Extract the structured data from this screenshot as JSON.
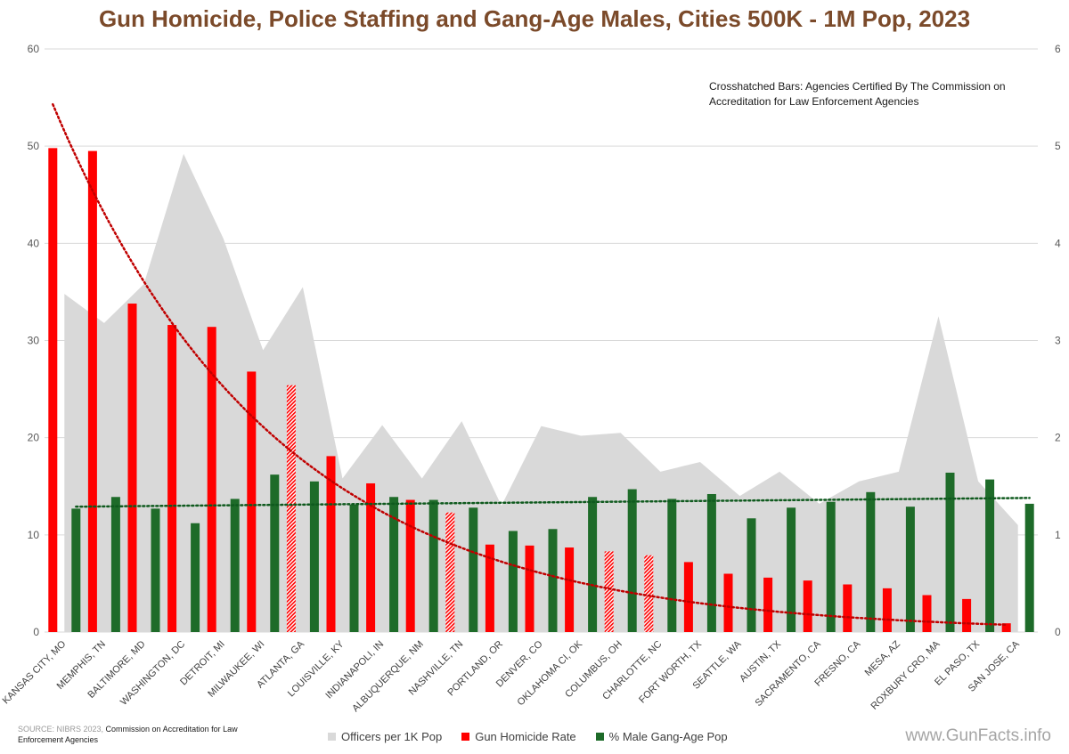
{
  "chart_data": {
    "type": "bar",
    "title": "Gun Homicide, Police Staffing and Gang-Age Males, Cities 500K - 1M Pop, 2023",
    "categories": [
      "KANSAS CITY, MO",
      "MEMPHIS, TN",
      "BALTIMORE, MD",
      "WASHINGTON, DC",
      "DETROIT, MI",
      "MILWAUKEE, WI",
      "ATLANTA, GA",
      "LOUISVILLE, KY",
      "INDIANAPOLI, IN",
      "ALBUQUERQUE, NM",
      "NASHVILLE, TN",
      "PORTLAND, OR",
      "DENVER, CO",
      "OKLAHOMA CI, OK",
      "COLUMBUS, OH",
      "CHARLOTTE, NC",
      "FORT WORTH, TX",
      "SEATTLE, WA",
      "AUSTIN, TX",
      "SACRAMENTO, CA",
      "FRESNO, CA",
      "MESA, AZ",
      "ROXBURY CRO, MA",
      "EL PASO, TX",
      "SAN JOSE, CA"
    ],
    "series": [
      {
        "name": "Officers per 1K Pop",
        "type": "area",
        "axis": "right",
        "color": "#d9d9d9",
        "values": [
          3.48,
          3.18,
          3.58,
          4.92,
          4.05,
          2.9,
          3.55,
          1.58,
          2.13,
          1.58,
          2.17,
          1.3,
          2.12,
          2.02,
          2.05,
          1.65,
          1.75,
          1.4,
          1.65,
          1.32,
          1.55,
          1.65,
          3.25,
          1.55,
          1.1
        ]
      },
      {
        "name": "Gun Homicide Rate",
        "type": "bar",
        "axis": "left",
        "color": "#ff0000",
        "values": [
          49.8,
          49.5,
          33.8,
          31.6,
          31.4,
          26.8,
          25.4,
          18.1,
          15.3,
          13.6,
          12.3,
          9.0,
          8.9,
          8.7,
          8.3,
          7.9,
          7.2,
          6.0,
          5.6,
          5.3,
          4.9,
          4.5,
          3.8,
          3.4,
          0.9
        ]
      },
      {
        "name": "% Male Gang-Age Pop",
        "type": "bar",
        "axis": "left",
        "color": "#1e6b29",
        "values": [
          12.7,
          13.9,
          12.7,
          11.2,
          13.7,
          16.2,
          15.5,
          13.1,
          13.9,
          13.6,
          12.8,
          10.4,
          10.6,
          13.9,
          14.7,
          13.7,
          14.2,
          11.7,
          12.8,
          13.4,
          14.4,
          12.9,
          16.4,
          15.7,
          13.2
        ]
      }
    ],
    "crosshatched": [
      "ATLANTA, GA",
      "NASHVILLE, TN",
      "COLUMBUS, OH",
      "CHARLOTTE, NC"
    ],
    "trendlines": [
      {
        "series": "Gun Homicide Rate",
        "kind": "exponential",
        "color": "#c00000",
        "start": 54.3,
        "end": 0.75
      },
      {
        "series": "% Male Gang-Age Pop",
        "kind": "linear",
        "color": "#0f5a1e",
        "start": 12.9,
        "end": 13.8
      }
    ],
    "left_axis": {
      "min": 0,
      "max": 60,
      "ticks": [
        0,
        10,
        20,
        30,
        40,
        50,
        60
      ]
    },
    "right_axis": {
      "min": 0,
      "max": 6,
      "ticks": [
        0,
        1,
        2,
        3,
        4,
        5,
        6
      ]
    },
    "legend_position": "bottom",
    "annotation": "Crosshatched Bars: Agencies Certified By The Commission on Accreditation for Law Enforcement Agencies"
  },
  "legend": {
    "items": [
      {
        "label": "Officers per 1K Pop",
        "color": "#d9d9d9"
      },
      {
        "label": "Gun Homicide Rate",
        "color": "#ff0000"
      },
      {
        "label": "% Male Gang-Age Pop",
        "color": "#1e6b29"
      }
    ]
  },
  "source": {
    "prefix": "SOURCE: NIBRS 2023, ",
    "bold": "Commission on Accreditation for Law Enforcement Agencies"
  },
  "watermark": "www.GunFacts.info"
}
